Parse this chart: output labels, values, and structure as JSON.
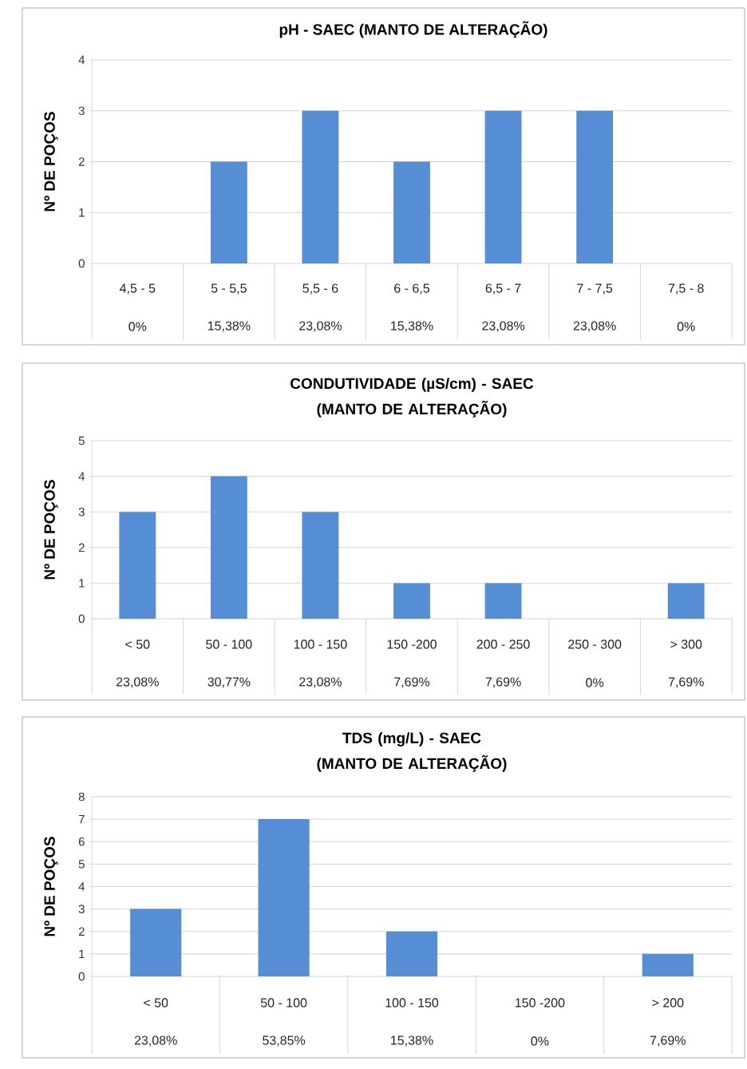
{
  "chart_data": [
    {
      "type": "bar",
      "title": "pH - SAEC (MANTO DE ALTERAÇÃO)",
      "ylabel": "Nº DE POÇOS",
      "categories": [
        "4,5 - 5",
        "5 - 5,5",
        "5,5 - 6",
        "6 - 6,5",
        "6,5 - 7",
        "7 - 7,5",
        "7,5 - 8"
      ],
      "values": [
        0,
        2,
        3,
        2,
        3,
        3,
        0
      ],
      "color": "#558ed5",
      "ylim": [
        0,
        4
      ],
      "yticks": [
        0,
        1,
        2,
        3,
        4
      ],
      "grid": "y",
      "annotations": [
        "0%",
        "15,38%",
        "23,08%",
        "15,38%",
        "23,08%",
        "23,08%",
        "0%"
      ]
    },
    {
      "type": "bar",
      "title": "CONDUTIVIDADE (µS/cm) - SAEC\n(MANTO DE ALTERAÇÃO)",
      "ylabel": "Nº DE POÇOS",
      "categories": [
        "< 50",
        "50 - 100",
        "100 - 150",
        "150 -200",
        "200 - 250",
        "250 - 300",
        "> 300"
      ],
      "values": [
        3,
        4,
        3,
        1,
        1,
        0,
        1
      ],
      "color": "#558ed5",
      "ylim": [
        0,
        5
      ],
      "yticks": [
        0,
        1,
        2,
        3,
        4,
        5
      ],
      "grid": "y",
      "annotations": [
        "23,08%",
        "30,77%",
        "23,08%",
        "7,69%",
        "7,69%",
        "0%",
        "7,69%"
      ]
    },
    {
      "type": "bar",
      "title": "TDS (mg/L) - SAEC\n(MANTO DE ALTERAÇÃO)",
      "ylabel": "Nº DE POÇOS",
      "categories": [
        "< 50",
        "50 - 100",
        "100 - 150",
        "150 -200",
        "> 200"
      ],
      "values": [
        3,
        7,
        2,
        0,
        1
      ],
      "color": "#558ed5",
      "ylim": [
        0,
        8
      ],
      "yticks": [
        0,
        1,
        2,
        3,
        4,
        5,
        6,
        7,
        8
      ],
      "grid": "y",
      "annotations": [
        "23,08%",
        "53,85%",
        "15,38%",
        "0%",
        "7,69%"
      ]
    }
  ]
}
